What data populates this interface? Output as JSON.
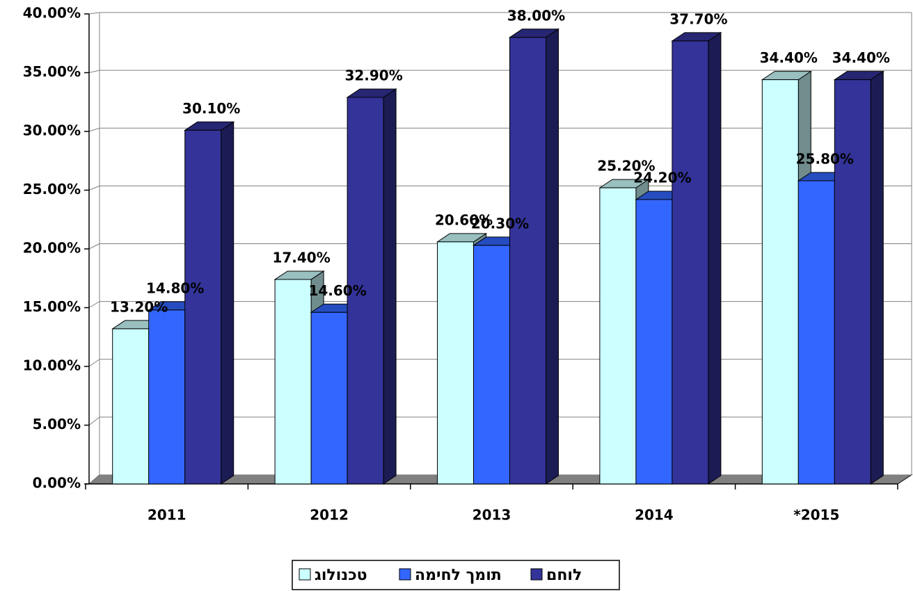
{
  "chart_data": {
    "type": "bar",
    "categories": [
      "2011",
      "2012",
      "2013",
      "2014",
      "*2015"
    ],
    "series": [
      {
        "name": "טכנולוג",
        "color": "#ccffff",
        "values": [
          13.2,
          17.4,
          20.6,
          25.2,
          34.4
        ],
        "value_labels": [
          "13.20%",
          "17.40%",
          "20.60%",
          "25.20%",
          "34.40%"
        ]
      },
      {
        "name": "תומך לחימה",
        "color": "#3366ff",
        "values": [
          14.8,
          14.6,
          20.3,
          24.2,
          25.8
        ],
        "value_labels": [
          "14.80%",
          "14.60%",
          "20.30%",
          "24.20%",
          "25.80%"
        ]
      },
      {
        "name": "לוחם",
        "color": "#333399",
        "values": [
          30.1,
          32.9,
          38.0,
          37.7,
          34.4
        ],
        "value_labels": [
          "30.10%",
          "32.90%",
          "38.00%",
          "37.70%",
          "34.40%"
        ]
      }
    ],
    "ylim": [
      0,
      40
    ],
    "yticks": [
      {
        "value": 0,
        "label": "0.00%"
      },
      {
        "value": 5,
        "label": "5.00%"
      },
      {
        "value": 10,
        "label": "10.00%"
      },
      {
        "value": 15,
        "label": "15.00%"
      },
      {
        "value": 20,
        "label": "20.00%"
      },
      {
        "value": 25,
        "label": "25.00%"
      },
      {
        "value": 30,
        "label": "30.00%"
      },
      {
        "value": 35,
        "label": "35.00%"
      },
      {
        "value": 40,
        "label": "40.00%"
      }
    ],
    "grid": true,
    "legend": "bottom"
  }
}
